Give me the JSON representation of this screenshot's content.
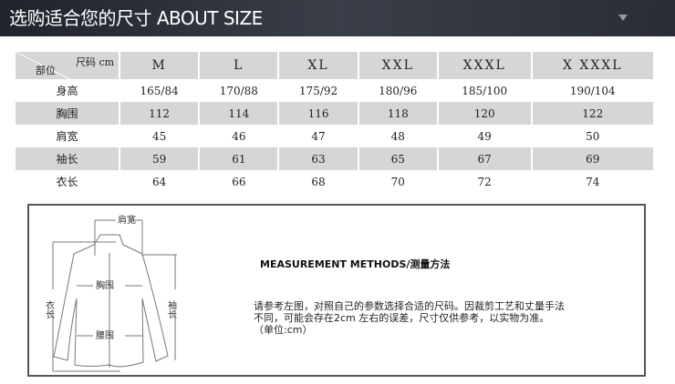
{
  "header": {
    "title": "选购适合您的尺寸 ABOUT SIZE"
  },
  "table": {
    "corner_left": "部位",
    "corner_right": "尺码 cm",
    "sizes": [
      "M",
      "L",
      "XL",
      "XXL",
      "XXXL",
      "X XXXL"
    ],
    "rows": [
      {
        "label": "身高",
        "values": [
          "165/84",
          "170/88",
          "175/92",
          "180/96",
          "185/100",
          "190/104"
        ]
      },
      {
        "label": "胸围",
        "values": [
          "112",
          "114",
          "116",
          "118",
          "120",
          "122"
        ]
      },
      {
        "label": "肩宽",
        "values": [
          "45",
          "46",
          "47",
          "48",
          "49",
          "50"
        ]
      },
      {
        "label": "袖长",
        "values": [
          "59",
          "61",
          "63",
          "65",
          "67",
          "69"
        ]
      },
      {
        "label": "衣长",
        "values": [
          "64",
          "66",
          "68",
          "70",
          "72",
          "74"
        ]
      }
    ]
  },
  "diagram": {
    "shoulder": "肩宽",
    "chest": "胸围",
    "waist": "腰围",
    "length": "衣长",
    "sleeve": "袖长"
  },
  "method": {
    "title": "MEASUREMENT METHODS/测量方法",
    "lines": [
      "请参考左图，对照自己的参数选择合适的尺码。因裁剪工艺和丈量手法",
      "不同，可能会存在2cm 左右的误差，尺寸仅供参考，以实物为准。",
      "（单位:cm）"
    ]
  }
}
